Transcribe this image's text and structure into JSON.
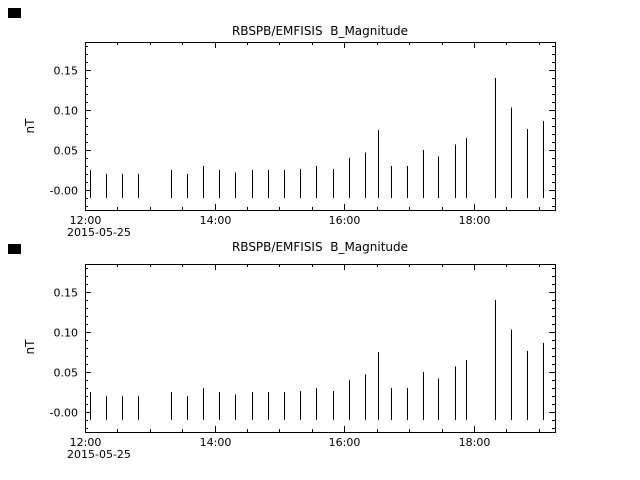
{
  "window": {
    "background": "#ffffff",
    "foreground": "#000000"
  },
  "chart_data": [
    {
      "type": "line",
      "series_style": "vertical-spikes",
      "title": "RBSPB/EMFISIS  B_Magnitude",
      "ylabel": "nT",
      "date_label": "2015-05-25",
      "ylim": [
        -0.025,
        0.185
      ],
      "yticks": [
        {
          "v": 0.0,
          "label": "-0.00"
        },
        {
          "v": 0.05,
          "label": "0.05"
        },
        {
          "v": 0.1,
          "label": "0.10"
        },
        {
          "v": 0.15,
          "label": "0.15"
        }
      ],
      "y_minor_step": 0.01,
      "xlim_hours": [
        12.0,
        19.25
      ],
      "xticks": [
        {
          "h": 12,
          "label": "12:00"
        },
        {
          "h": 14,
          "label": "14:00"
        },
        {
          "h": 16,
          "label": "16:00"
        },
        {
          "h": 18,
          "label": "18:00"
        }
      ],
      "x_minor_step_hours": 0.5,
      "spike_base": -0.01,
      "spikes": [
        [
          12.07,
          0.025
        ],
        [
          12.32,
          0.02
        ],
        [
          12.57,
          0.02
        ],
        [
          12.82,
          0.02
        ],
        [
          13.32,
          0.025
        ],
        [
          13.57,
          0.02
        ],
        [
          13.82,
          0.03
        ],
        [
          14.07,
          0.025
        ],
        [
          14.32,
          0.022
        ],
        [
          14.57,
          0.025
        ],
        [
          14.82,
          0.025
        ],
        [
          15.07,
          0.025
        ],
        [
          15.32,
          0.026
        ],
        [
          15.57,
          0.03
        ],
        [
          15.82,
          0.026
        ],
        [
          16.07,
          0.04
        ],
        [
          16.32,
          0.047
        ],
        [
          16.52,
          0.075
        ],
        [
          16.72,
          0.03
        ],
        [
          16.97,
          0.03
        ],
        [
          17.22,
          0.05
        ],
        [
          17.45,
          0.042
        ],
        [
          17.7,
          0.057
        ],
        [
          17.87,
          0.065
        ],
        [
          18.33,
          0.14
        ],
        [
          18.57,
          0.103
        ],
        [
          18.82,
          0.076
        ],
        [
          19.07,
          0.086
        ]
      ]
    },
    {
      "type": "line",
      "series_style": "vertical-spikes",
      "title": "RBSPB/EMFISIS  B_Magnitude",
      "ylabel": "nT",
      "date_label": "2015-05-25",
      "ylim": [
        -0.025,
        0.185
      ],
      "yticks": [
        {
          "v": 0.0,
          "label": "-0.00"
        },
        {
          "v": 0.05,
          "label": "0.05"
        },
        {
          "v": 0.1,
          "label": "0.10"
        },
        {
          "v": 0.15,
          "label": "0.15"
        }
      ],
      "y_minor_step": 0.01,
      "xlim_hours": [
        12.0,
        19.25
      ],
      "xticks": [
        {
          "h": 12,
          "label": "12:00"
        },
        {
          "h": 14,
          "label": "14:00"
        },
        {
          "h": 16,
          "label": "16:00"
        },
        {
          "h": 18,
          "label": "18:00"
        }
      ],
      "x_minor_step_hours": 0.5,
      "spike_base": -0.01,
      "spikes": [
        [
          12.07,
          0.025
        ],
        [
          12.32,
          0.02
        ],
        [
          12.57,
          0.02
        ],
        [
          12.82,
          0.02
        ],
        [
          13.32,
          0.025
        ],
        [
          13.57,
          0.02
        ],
        [
          13.82,
          0.03
        ],
        [
          14.07,
          0.025
        ],
        [
          14.32,
          0.022
        ],
        [
          14.57,
          0.025
        ],
        [
          14.82,
          0.025
        ],
        [
          15.07,
          0.025
        ],
        [
          15.32,
          0.026
        ],
        [
          15.57,
          0.03
        ],
        [
          15.82,
          0.026
        ],
        [
          16.07,
          0.04
        ],
        [
          16.32,
          0.047
        ],
        [
          16.52,
          0.075
        ],
        [
          16.72,
          0.03
        ],
        [
          16.97,
          0.03
        ],
        [
          17.22,
          0.05
        ],
        [
          17.45,
          0.042
        ],
        [
          17.7,
          0.057
        ],
        [
          17.87,
          0.065
        ],
        [
          18.33,
          0.14
        ],
        [
          18.57,
          0.103
        ],
        [
          18.82,
          0.076
        ],
        [
          19.07,
          0.086
        ]
      ]
    }
  ]
}
